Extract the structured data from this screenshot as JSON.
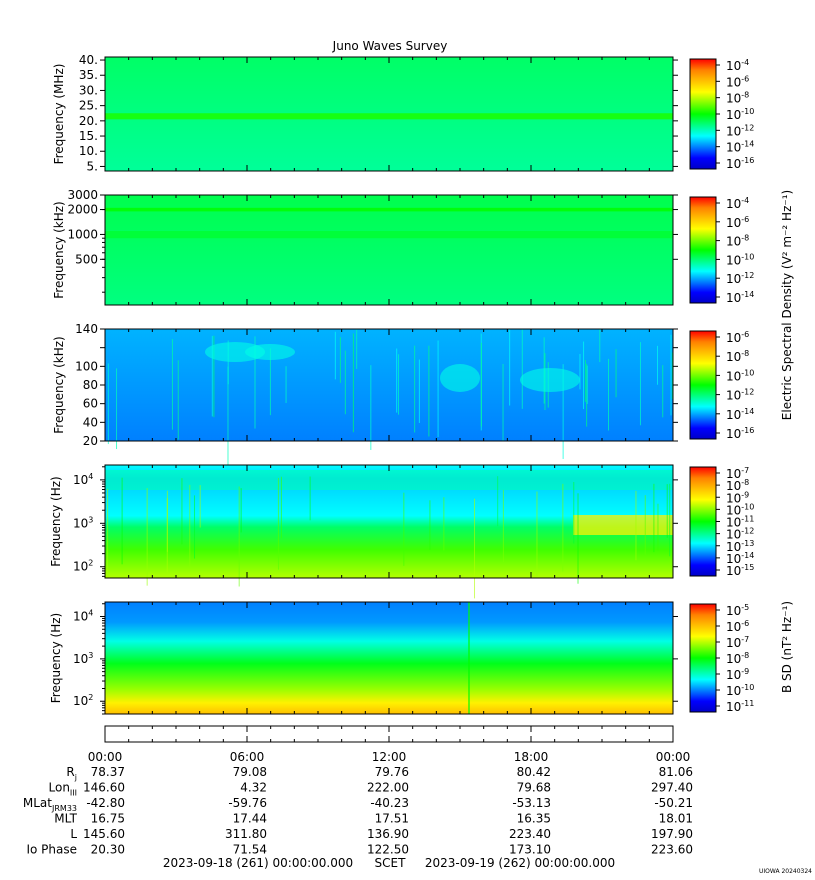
{
  "chart_data": {
    "type": "heatmap",
    "title": "Juno Waves Survey",
    "watermark": "UIOWA 20240324",
    "colormap": [
      "#0000c8",
      "#0000ff",
      "#0080ff",
      "#00ffff",
      "#00ff80",
      "#00ff00",
      "#80ff00",
      "#ffff00",
      "#ffc000",
      "#ff8000",
      "#ff0000"
    ],
    "x_axis": {
      "tick_labels": [
        "00:00",
        "06:00",
        "12:00",
        "18:00",
        "00:00"
      ],
      "start_label": "2023-09-18 (261) 00:00:00.000",
      "frame_label": "SCET",
      "end_label": "2023-09-19 (262) 00:00:00.000"
    },
    "panels": [
      {
        "ylabel": "Frequency (MHz)",
        "scale": "linear",
        "ylim": [
          3.5,
          41
        ],
        "yticks": [
          5,
          10,
          15,
          20,
          25,
          30,
          35,
          40
        ],
        "ytick_labels": [
          "5.",
          "10.",
          "15.",
          "20.",
          "25.",
          "30.",
          "35.",
          "40."
        ],
        "features": [
          {
            "kind": "band",
            "from": 20.5,
            "to": 22.5,
            "level": 0.52
          }
        ],
        "background": 0.4,
        "colorbar": {
          "tick_labels": [
            "10-4",
            "10-6",
            "10-8",
            "10-10",
            "10-12",
            "10-14",
            "10-16"
          ]
        }
      },
      {
        "ylabel": "Frequency (kHz)",
        "scale": "log",
        "ylim": [
          140,
          3000
        ],
        "yticks": [
          500,
          1000,
          2000,
          3000
        ],
        "ytick_labels": [
          "500",
          "1000",
          "2000",
          "3000"
        ],
        "features": [
          {
            "kind": "band",
            "from": 1900,
            "to": 2100,
            "level": 0.5
          },
          {
            "kind": "band",
            "from": 900,
            "to": 1100,
            "level": 0.46
          }
        ],
        "background": 0.42,
        "colorbar": {
          "tick_labels": [
            "10-4",
            "10-6",
            "10-8",
            "10-10",
            "10-12",
            "10-14"
          ]
        }
      },
      {
        "ylabel": "Frequency (kHz)",
        "scale": "linear",
        "ylim": [
          20,
          140
        ],
        "yticks": [
          20,
          40,
          60,
          80,
          100,
          120,
          140
        ],
        "ytick_labels": [
          "20",
          "40",
          "60",
          "80",
          "100",
          "",
          "140"
        ],
        "background": 0.22,
        "colorbar": {
          "tick_labels": [
            "10-6",
            "10-8",
            "10-10",
            "10-12",
            "10-14",
            "10-16"
          ]
        }
      },
      {
        "ylabel": "Frequency (Hz)",
        "scale": "log",
        "ylim": [
          55,
          22000
        ],
        "yticks": [
          100,
          1000,
          10000
        ],
        "ytick_labels": [
          "10^2",
          "10^3",
          "10^4"
        ],
        "background": 0.3,
        "colorbar": {
          "tick_labels": [
            "10-7",
            "10-8",
            "10-9",
            "10-10",
            "10-11",
            "10-12",
            "10-13",
            "10-14",
            "10-15"
          ]
        }
      },
      {
        "ylabel": "Frequency (Hz)",
        "scale": "log",
        "ylim": [
          50,
          22000
        ],
        "yticks": [
          100,
          1000,
          10000
        ],
        "ytick_labels": [
          "10^2",
          "10^3",
          "10^4"
        ],
        "background": 0.2,
        "colorbar": {
          "tick_labels": [
            "10-5",
            "10-6",
            "10-7",
            "10-8",
            "10-9",
            "10-10",
            "10-11"
          ]
        }
      }
    ],
    "colorbar_labels": {
      "electric": "Electric Spectral Density (V² m⁻² Hz⁻¹)",
      "magnetic": "B SD (nT² Hz⁻¹)"
    },
    "ephemeris": {
      "rows": [
        {
          "label": "Rj",
          "values": [
            "78.37",
            "79.08",
            "79.76",
            "80.42",
            "81.06"
          ]
        },
        {
          "label": "LonIII",
          "values": [
            "146.60",
            "4.32",
            "222.00",
            "79.68",
            "297.40"
          ]
        },
        {
          "label": "MLatJRM33",
          "values": [
            "-42.80",
            "-59.76",
            "-40.23",
            "-53.13",
            "-50.21"
          ]
        },
        {
          "label": "MLT",
          "values": [
            "16.75",
            "17.44",
            "17.51",
            "16.35",
            "18.01"
          ]
        },
        {
          "label": "L",
          "values": [
            "145.60",
            "311.80",
            "136.90",
            "223.40",
            "197.90"
          ]
        },
        {
          "label": "Io Phase",
          "values": [
            "20.30",
            "71.54",
            "122.50",
            "173.10",
            "223.60"
          ]
        }
      ]
    }
  }
}
